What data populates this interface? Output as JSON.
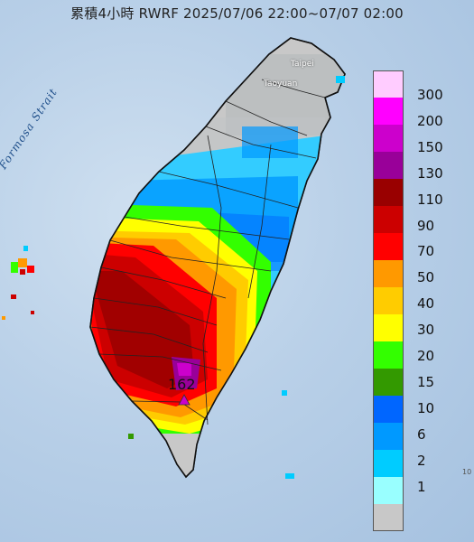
{
  "title": "累積4小時 RWRF 2025/07/06 22:00~07/07 02:00",
  "strait_label": "Formosa Strait",
  "cities": [
    "Taipei",
    "Taoyuan"
  ],
  "max_label": "162",
  "legend": {
    "colors": [
      "#ffccff",
      "#ff00ff",
      "#cc00cc",
      "#990099",
      "#990000",
      "#cc0000",
      "#ff0000",
      "#ff9900",
      "#ffcc00",
      "#ffff00",
      "#33ff00",
      "#339900",
      "#0066ff",
      "#0099ff",
      "#00ccff",
      "#99ffff",
      "#c8c8c8"
    ],
    "labels": [
      "300",
      "200",
      "150",
      "130",
      "110",
      "90",
      "70",
      "50",
      "40",
      "30",
      "20",
      "15",
      "10",
      "6",
      "2",
      "1"
    ]
  },
  "corner_mark": "10"
}
